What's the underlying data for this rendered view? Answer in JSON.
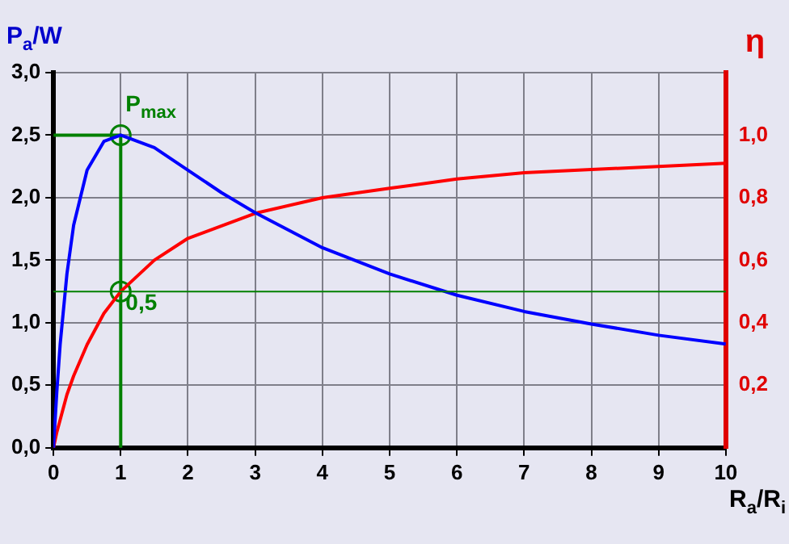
{
  "chart_data": {
    "type": "line",
    "xlabel": "R$_{a}$/R$_{i}$",
    "ylabel": "P$_{a}$/W",
    "y2label": "η",
    "xlim": [
      0,
      10
    ],
    "xticks": [
      0,
      1,
      2,
      3,
      4,
      5,
      6,
      7,
      8,
      9,
      10
    ],
    "ylim": [
      0,
      3
    ],
    "yticks": [
      {
        "value": 0,
        "label": "0,0"
      },
      {
        "value": 0.5,
        "label": "0,5"
      },
      {
        "value": 1,
        "label": "1,0"
      },
      {
        "value": 1.5,
        "label": "1,5"
      },
      {
        "value": 2,
        "label": "2,0"
      },
      {
        "value": 2.5,
        "label": "2,5"
      },
      {
        "value": 3,
        "label": "3,0"
      }
    ],
    "y2lim": [
      0,
      1.2
    ],
    "y2ticks": [
      {
        "value": 0.2,
        "label": "0,2"
      },
      {
        "value": 0.4,
        "label": "0,4"
      },
      {
        "value": 0.6,
        "label": "0,6"
      },
      {
        "value": 0.8,
        "label": "0,8"
      },
      {
        "value": 1,
        "label": "1,0"
      },
      {
        "value": 1.2,
        "label": null
      }
    ],
    "grid": true,
    "legend": false,
    "marker": "none",
    "line_style": "solid",
    "series": [
      {
        "type": "line",
        "color": "#0000ff",
        "x": [
          0,
          0.05,
          0.1,
          0.2,
          0.3,
          0.5,
          0.75,
          1,
          1.5,
          2,
          2.5,
          3,
          4,
          5,
          6,
          7,
          8,
          9,
          10
        ],
        "values": [
          0,
          0.45,
          0.83,
          1.39,
          1.78,
          2.22,
          2.45,
          2.5,
          2.4,
          2.22,
          2.04,
          1.88,
          1.6,
          1.39,
          1.22,
          1.09,
          0.99,
          0.9,
          0.83
        ]
      },
      {
        "type": "line",
        "color": "#ff0000",
        "axis": "y2",
        "x": [
          0,
          0.05,
          0.1,
          0.2,
          0.3,
          0.5,
          0.75,
          1,
          1.5,
          2,
          2.5,
          3,
          4,
          5,
          6,
          7,
          8,
          9,
          10
        ],
        "values": [
          0,
          0.05,
          0.09,
          0.17,
          0.23,
          0.33,
          0.43,
          0.5,
          0.6,
          0.67,
          0.71,
          0.75,
          0.8,
          0.83,
          0.86,
          0.88,
          0.89,
          0.9,
          0.91
        ]
      },
      {
        "type": "line",
        "color": "#008000",
        "x": [
          0,
          1,
          1
        ],
        "values": [
          2.5,
          2.5,
          0
        ]
      },
      {
        "type": "scatter",
        "color": "#008000",
        "marker": "circle",
        "x": [
          1
        ],
        "values": [
          2.5
        ]
      },
      {
        "type": "scatter",
        "color": "#008000",
        "marker": "circle",
        "axis": "y2",
        "x": [
          1
        ],
        "values": [
          0.5
        ]
      }
    ],
    "ref_lines": [
      {
        "axis": "y",
        "value": 1.25,
        "color": "#008000"
      }
    ],
    "annotations": [
      {
        "text": "P$_{max}$",
        "x": 1,
        "y": 2.5
      },
      {
        "text": "0,5",
        "x": 1,
        "y": 1.25
      }
    ]
  }
}
